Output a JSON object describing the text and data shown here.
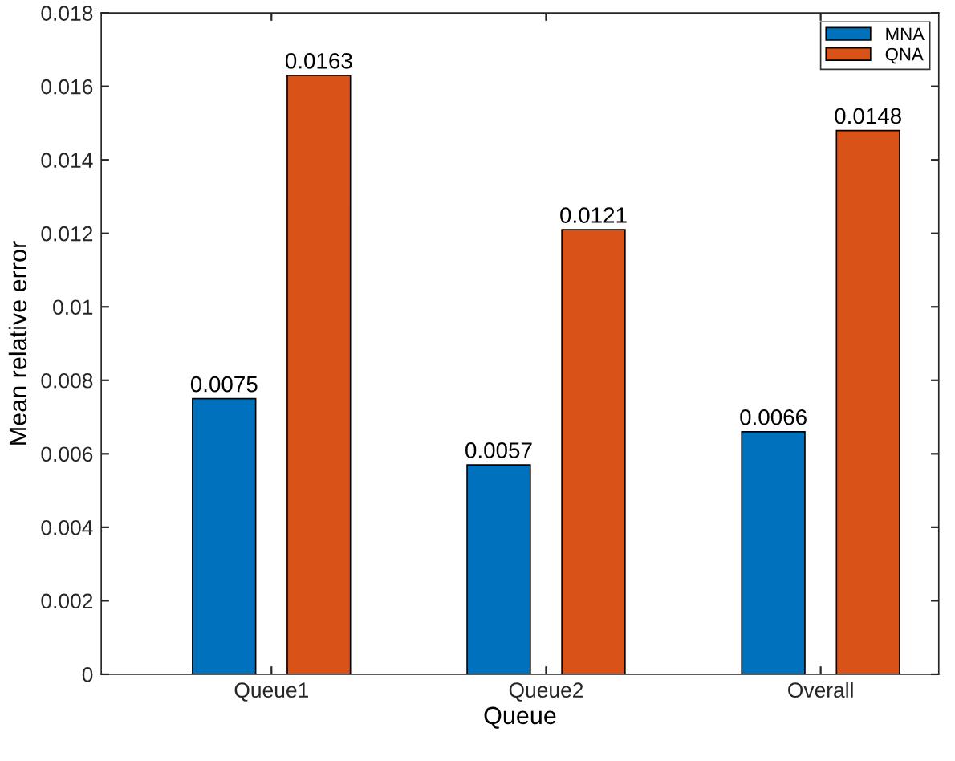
{
  "chart_data": {
    "type": "bar",
    "xlabel": "Queue",
    "ylabel": "Mean relative error",
    "categories": [
      "Queue1",
      "Queue2",
      "Overall"
    ],
    "series": [
      {
        "name": "MNA",
        "color": "#0072bd",
        "values": [
          0.0075,
          0.0057,
          0.0066
        ]
      },
      {
        "name": "QNA",
        "color": "#d95319",
        "values": [
          0.0163,
          0.0121,
          0.0148
        ]
      }
    ],
    "ylim": [
      0,
      0.018
    ],
    "yticks": [
      0,
      0.002,
      0.004,
      0.006,
      0.008,
      0.01,
      0.012,
      0.014,
      0.016,
      0.018
    ],
    "data_labels": true,
    "legend": "top right",
    "grid": false
  }
}
